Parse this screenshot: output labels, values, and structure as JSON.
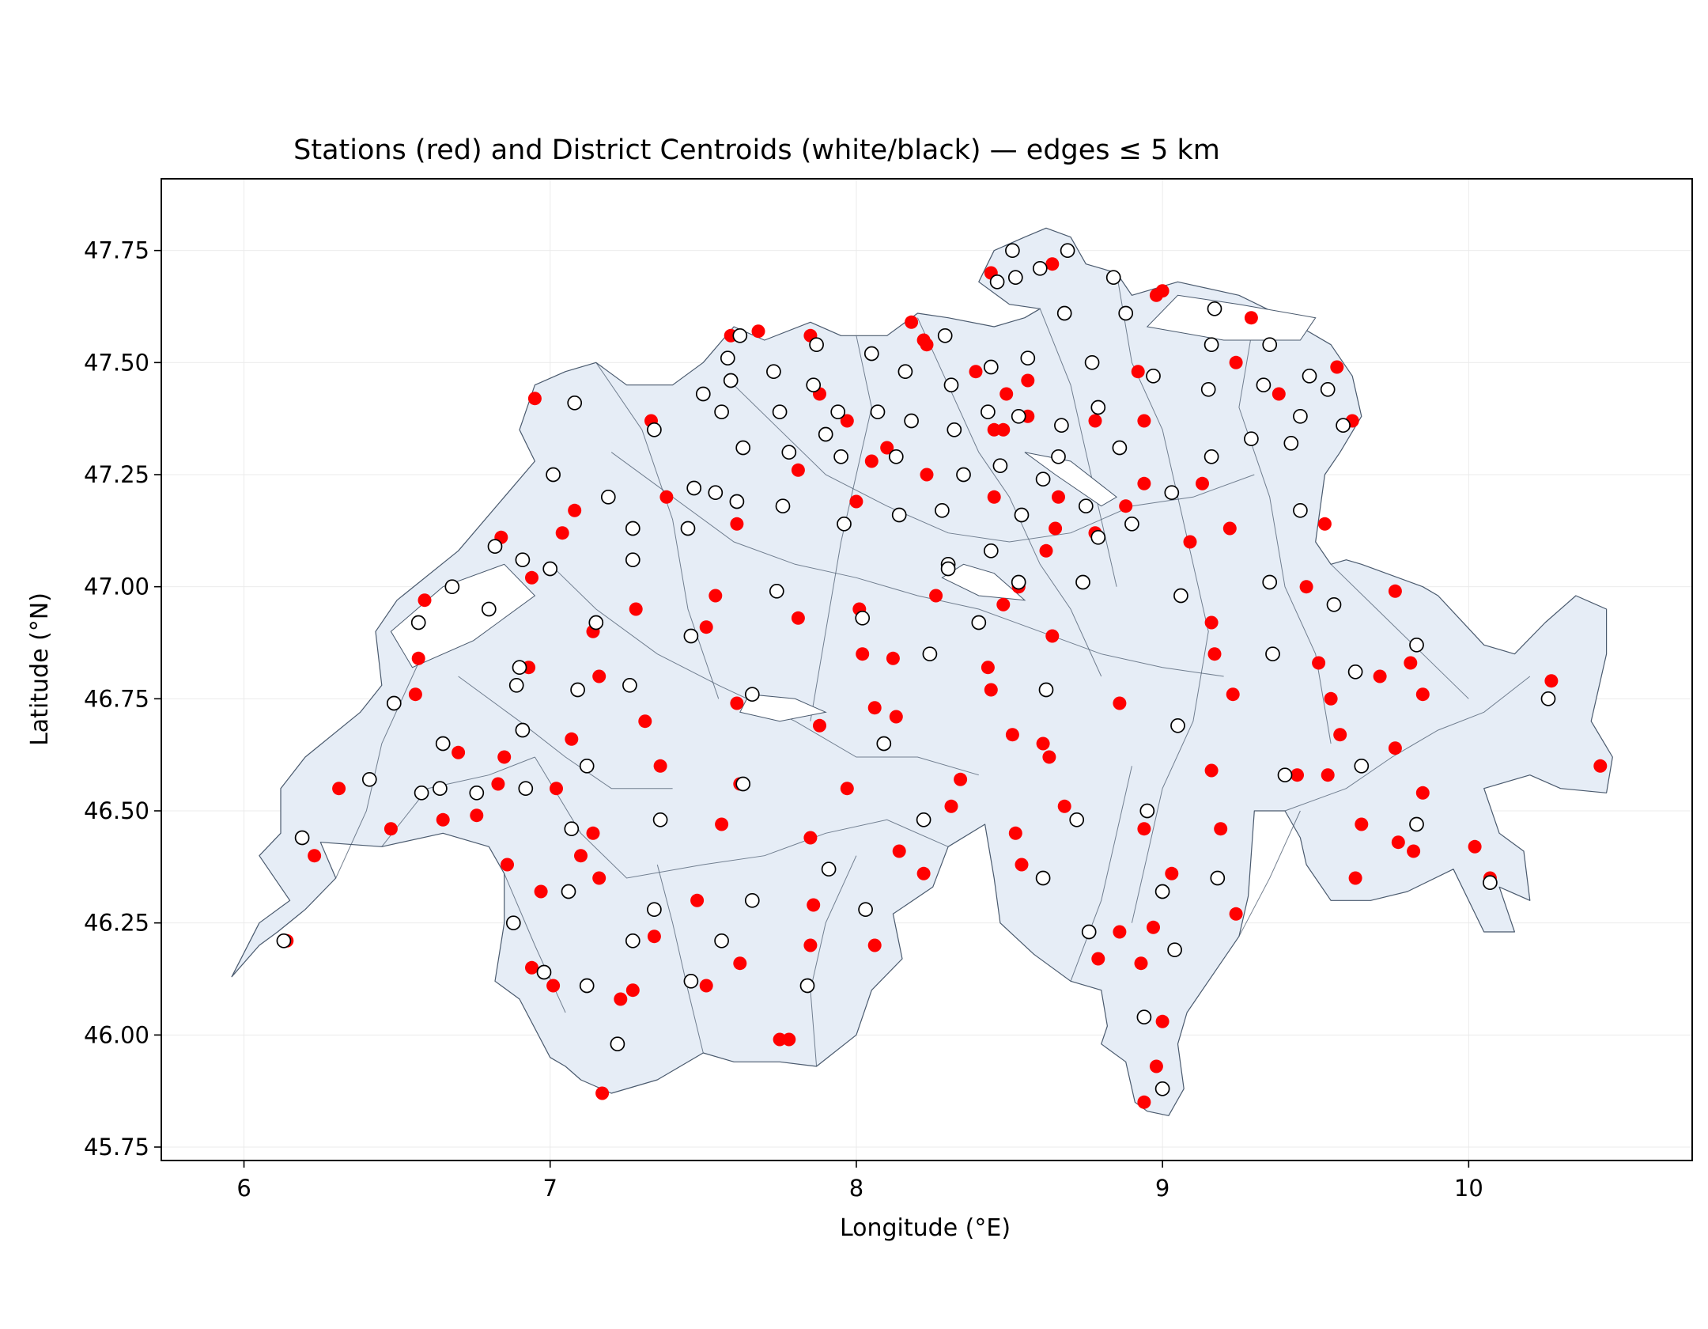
{
  "chart_data": {
    "type": "scatter",
    "title": "Stations (red) and District Centroids (white/black) — edges ≤ 5 km",
    "xlabel": "Longitude (°E)",
    "ylabel": "Latitude (°N)",
    "xlim": [
      5.73,
      10.73
    ],
    "ylim": [
      45.72,
      47.91
    ],
    "xticks": [
      6,
      7,
      8,
      9,
      10
    ],
    "yticks": [
      45.75,
      46.0,
      46.25,
      46.5,
      46.75,
      47.0,
      47.25,
      47.5,
      47.75
    ],
    "grid": true,
    "region_fill": "#e6edf6",
    "region_stroke": "#4a5a6e",
    "series": [
      {
        "name": "Stations (red)",
        "color": "#ff0000",
        "marker": "filled-circle",
        "points": [
          [
            6.31,
            46.55
          ],
          [
            6.48,
            46.46
          ],
          [
            6.23,
            46.4
          ],
          [
            6.14,
            46.21
          ],
          [
            6.59,
            46.97
          ],
          [
            6.57,
            46.84
          ],
          [
            6.56,
            46.76
          ],
          [
            6.7,
            46.63
          ],
          [
            6.65,
            46.48
          ],
          [
            6.76,
            46.49
          ],
          [
            6.84,
            47.11
          ],
          [
            6.83,
            46.56
          ],
          [
            6.85,
            46.62
          ],
          [
            6.86,
            46.38
          ],
          [
            6.93,
            46.82
          ],
          [
            6.94,
            47.02
          ],
          [
            6.95,
            47.42
          ],
          [
            6.97,
            46.32
          ],
          [
            6.94,
            46.15
          ],
          [
            7.01,
            46.11
          ],
          [
            7.02,
            46.55
          ],
          [
            7.04,
            47.12
          ],
          [
            7.08,
            47.17
          ],
          [
            7.07,
            46.66
          ],
          [
            7.1,
            46.4
          ],
          [
            7.14,
            46.9
          ],
          [
            7.14,
            46.45
          ],
          [
            7.16,
            46.35
          ],
          [
            7.16,
            46.8
          ],
          [
            7.17,
            45.87
          ],
          [
            7.23,
            46.08
          ],
          [
            7.28,
            46.95
          ],
          [
            7.27,
            46.1
          ],
          [
            7.31,
            46.7
          ],
          [
            7.33,
            47.37
          ],
          [
            7.34,
            46.22
          ],
          [
            7.36,
            46.6
          ],
          [
            7.38,
            47.2
          ],
          [
            7.48,
            46.3
          ],
          [
            7.51,
            46.91
          ],
          [
            7.51,
            46.11
          ],
          [
            7.54,
            46.98
          ],
          [
            7.56,
            46.47
          ],
          [
            7.59,
            47.56
          ],
          [
            7.61,
            47.14
          ],
          [
            7.61,
            46.74
          ],
          [
            7.62,
            46.56
          ],
          [
            7.62,
            46.16
          ],
          [
            7.68,
            47.57
          ],
          [
            7.75,
            45.99
          ],
          [
            7.78,
            45.99
          ],
          [
            7.81,
            47.26
          ],
          [
            7.81,
            46.93
          ],
          [
            7.85,
            47.56
          ],
          [
            7.85,
            46.44
          ],
          [
            7.85,
            46.2
          ],
          [
            7.86,
            46.29
          ],
          [
            7.88,
            47.43
          ],
          [
            7.88,
            46.69
          ],
          [
            7.97,
            47.37
          ],
          [
            7.97,
            46.55
          ],
          [
            8.0,
            47.19
          ],
          [
            8.01,
            46.95
          ],
          [
            8.02,
            46.85
          ],
          [
            8.05,
            47.28
          ],
          [
            8.06,
            46.73
          ],
          [
            8.06,
            46.2
          ],
          [
            8.1,
            47.31
          ],
          [
            8.12,
            46.84
          ],
          [
            8.13,
            46.71
          ],
          [
            8.14,
            46.41
          ],
          [
            8.18,
            47.59
          ],
          [
            8.22,
            47.55
          ],
          [
            8.22,
            46.36
          ],
          [
            8.23,
            47.54
          ],
          [
            8.23,
            47.25
          ],
          [
            8.26,
            46.98
          ],
          [
            8.3,
            47.05
          ],
          [
            8.31,
            46.51
          ],
          [
            8.34,
            46.57
          ],
          [
            8.39,
            47.48
          ],
          [
            8.43,
            46.82
          ],
          [
            8.44,
            46.77
          ],
          [
            8.44,
            47.7
          ],
          [
            8.45,
            47.35
          ],
          [
            8.45,
            47.2
          ],
          [
            8.48,
            47.35
          ],
          [
            8.48,
            46.96
          ],
          [
            8.49,
            47.43
          ],
          [
            8.51,
            46.67
          ],
          [
            8.52,
            46.45
          ],
          [
            8.53,
            47.0
          ],
          [
            8.53,
            47.0
          ],
          [
            8.54,
            46.38
          ],
          [
            8.56,
            47.46
          ],
          [
            8.56,
            47.38
          ],
          [
            8.61,
            46.65
          ],
          [
            8.62,
            47.08
          ],
          [
            8.63,
            46.62
          ],
          [
            8.64,
            47.72
          ],
          [
            8.65,
            47.13
          ],
          [
            8.66,
            47.2
          ],
          [
            8.64,
            46.89
          ],
          [
            8.68,
            46.51
          ],
          [
            8.78,
            47.37
          ],
          [
            8.78,
            47.12
          ],
          [
            8.79,
            46.17
          ],
          [
            8.86,
            46.74
          ],
          [
            8.86,
            46.23
          ],
          [
            8.88,
            47.18
          ],
          [
            8.92,
            47.48
          ],
          [
            8.93,
            46.16
          ],
          [
            8.94,
            47.37
          ],
          [
            8.94,
            46.46
          ],
          [
            8.94,
            47.23
          ],
          [
            8.94,
            45.85
          ],
          [
            8.97,
            46.24
          ],
          [
            8.98,
            47.65
          ],
          [
            8.98,
            45.93
          ],
          [
            9.0,
            47.66
          ],
          [
            9.0,
            46.03
          ],
          [
            9.03,
            46.36
          ],
          [
            9.09,
            47.1
          ],
          [
            9.13,
            47.23
          ],
          [
            9.16,
            46.92
          ],
          [
            9.17,
            46.85
          ],
          [
            9.16,
            46.59
          ],
          [
            9.19,
            46.46
          ],
          [
            9.22,
            47.13
          ],
          [
            9.23,
            46.76
          ],
          [
            9.24,
            47.5
          ],
          [
            9.24,
            46.27
          ],
          [
            9.29,
            47.6
          ],
          [
            9.38,
            47.43
          ],
          [
            9.44,
            46.58
          ],
          [
            9.47,
            47.0
          ],
          [
            9.51,
            46.83
          ],
          [
            9.53,
            47.14
          ],
          [
            9.54,
            46.58
          ],
          [
            9.55,
            46.75
          ],
          [
            9.57,
            47.49
          ],
          [
            9.58,
            46.67
          ],
          [
            9.62,
            47.37
          ],
          [
            9.63,
            46.35
          ],
          [
            9.65,
            46.47
          ],
          [
            9.71,
            46.8
          ],
          [
            9.76,
            46.99
          ],
          [
            9.76,
            46.64
          ],
          [
            9.77,
            46.43
          ],
          [
            9.81,
            46.83
          ],
          [
            9.82,
            46.41
          ],
          [
            9.85,
            46.76
          ],
          [
            9.85,
            46.54
          ],
          [
            10.02,
            46.42
          ],
          [
            10.07,
            46.35
          ],
          [
            10.27,
            46.79
          ],
          [
            10.43,
            46.6
          ]
        ]
      },
      {
        "name": "District Centroids (white/black)",
        "color": "#ffffff",
        "edge_color": "#000000",
        "marker": "open-circle",
        "points": [
          [
            6.19,
            46.44
          ],
          [
            6.13,
            46.21
          ],
          [
            6.41,
            46.57
          ],
          [
            6.49,
            46.74
          ],
          [
            6.57,
            46.92
          ],
          [
            6.58,
            46.54
          ],
          [
            6.64,
            46.55
          ],
          [
            6.65,
            46.65
          ],
          [
            6.68,
            47.0
          ],
          [
            6.76,
            46.54
          ],
          [
            6.8,
            46.95
          ],
          [
            6.82,
            47.09
          ],
          [
            6.88,
            46.25
          ],
          [
            6.89,
            46.78
          ],
          [
            6.9,
            46.82
          ],
          [
            6.91,
            47.06
          ],
          [
            6.91,
            46.68
          ],
          [
            6.92,
            46.55
          ],
          [
            6.98,
            46.14
          ],
          [
            7.0,
            47.04
          ],
          [
            7.01,
            47.25
          ],
          [
            7.06,
            46.32
          ],
          [
            7.07,
            46.46
          ],
          [
            7.08,
            47.41
          ],
          [
            7.09,
            46.77
          ],
          [
            7.12,
            46.6
          ],
          [
            7.12,
            46.11
          ],
          [
            7.15,
            46.92
          ],
          [
            7.19,
            47.2
          ],
          [
            7.22,
            45.98
          ],
          [
            7.26,
            46.78
          ],
          [
            7.27,
            46.21
          ],
          [
            7.27,
            47.13
          ],
          [
            7.27,
            47.06
          ],
          [
            7.34,
            46.28
          ],
          [
            7.34,
            47.35
          ],
          [
            7.36,
            46.48
          ],
          [
            7.45,
            47.13
          ],
          [
            7.46,
            46.89
          ],
          [
            7.46,
            46.12
          ],
          [
            7.47,
            47.22
          ],
          [
            7.5,
            47.43
          ],
          [
            7.54,
            47.21
          ],
          [
            7.56,
            47.39
          ],
          [
            7.56,
            46.21
          ],
          [
            7.58,
            47.51
          ],
          [
            7.59,
            47.46
          ],
          [
            7.61,
            47.19
          ],
          [
            7.62,
            47.56
          ],
          [
            7.63,
            47.31
          ],
          [
            7.63,
            46.56
          ],
          [
            7.66,
            46.76
          ],
          [
            7.66,
            46.3
          ],
          [
            7.73,
            47.48
          ],
          [
            7.74,
            46.99
          ],
          [
            7.75,
            47.39
          ],
          [
            7.76,
            47.18
          ],
          [
            7.78,
            47.3
          ],
          [
            7.84,
            46.11
          ],
          [
            7.86,
            47.45
          ],
          [
            7.87,
            47.54
          ],
          [
            7.9,
            47.34
          ],
          [
            7.91,
            46.37
          ],
          [
            7.94,
            47.39
          ],
          [
            7.95,
            47.29
          ],
          [
            7.96,
            47.14
          ],
          [
            8.02,
            46.93
          ],
          [
            8.03,
            46.28
          ],
          [
            8.05,
            47.52
          ],
          [
            8.07,
            47.39
          ],
          [
            8.09,
            46.65
          ],
          [
            8.13,
            47.29
          ],
          [
            8.14,
            47.16
          ],
          [
            8.16,
            47.48
          ],
          [
            8.18,
            47.37
          ],
          [
            8.22,
            46.48
          ],
          [
            8.24,
            46.85
          ],
          [
            8.28,
            47.17
          ],
          [
            8.29,
            47.56
          ],
          [
            8.3,
            47.05
          ],
          [
            8.3,
            47.04
          ],
          [
            8.31,
            47.45
          ],
          [
            8.32,
            47.35
          ],
          [
            8.35,
            47.25
          ],
          [
            8.4,
            46.92
          ],
          [
            8.43,
            47.39
          ],
          [
            8.44,
            47.08
          ],
          [
            8.44,
            47.49
          ],
          [
            8.46,
            47.68
          ],
          [
            8.47,
            47.27
          ],
          [
            8.51,
            47.75
          ],
          [
            8.52,
            47.69
          ],
          [
            8.53,
            47.38
          ],
          [
            8.53,
            47.01
          ],
          [
            8.54,
            47.16
          ],
          [
            8.56,
            47.51
          ],
          [
            8.6,
            47.71
          ],
          [
            8.61,
            47.24
          ],
          [
            8.61,
            46.35
          ],
          [
            8.62,
            46.77
          ],
          [
            8.66,
            47.29
          ],
          [
            8.67,
            47.36
          ],
          [
            8.68,
            47.61
          ],
          [
            8.69,
            47.75
          ],
          [
            8.72,
            46.48
          ],
          [
            8.74,
            47.01
          ],
          [
            8.75,
            47.18
          ],
          [
            8.76,
            46.23
          ],
          [
            8.77,
            47.5
          ],
          [
            8.79,
            47.4
          ],
          [
            8.79,
            47.11
          ],
          [
            8.84,
            47.69
          ],
          [
            8.86,
            47.31
          ],
          [
            8.88,
            47.61
          ],
          [
            8.9,
            47.14
          ],
          [
            8.94,
            46.04
          ],
          [
            8.95,
            46.5
          ],
          [
            8.97,
            47.47
          ],
          [
            9.0,
            46.32
          ],
          [
            9.0,
            45.88
          ],
          [
            9.03,
            47.21
          ],
          [
            9.04,
            46.19
          ],
          [
            9.05,
            46.69
          ],
          [
            9.06,
            46.98
          ],
          [
            9.15,
            47.44
          ],
          [
            9.16,
            47.54
          ],
          [
            9.17,
            47.62
          ],
          [
            9.16,
            47.29
          ],
          [
            9.18,
            46.35
          ],
          [
            9.29,
            47.33
          ],
          [
            9.33,
            47.45
          ],
          [
            9.35,
            47.01
          ],
          [
            9.35,
            47.54
          ],
          [
            9.36,
            46.85
          ],
          [
            9.4,
            46.58
          ],
          [
            9.42,
            47.32
          ],
          [
            9.45,
            47.38
          ],
          [
            9.45,
            47.17
          ],
          [
            9.48,
            47.47
          ],
          [
            9.54,
            47.44
          ],
          [
            9.56,
            46.96
          ],
          [
            9.59,
            47.36
          ],
          [
            9.63,
            46.81
          ],
          [
            9.65,
            46.6
          ],
          [
            9.83,
            46.87
          ],
          [
            9.83,
            46.47
          ],
          [
            10.07,
            46.34
          ],
          [
            10.26,
            46.75
          ]
        ]
      }
    ]
  }
}
